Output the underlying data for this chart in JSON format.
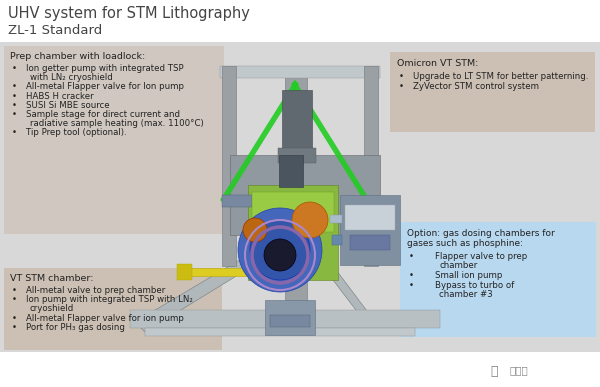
{
  "title": "UHV system for STM Lithography",
  "subtitle": "ZL-1 Standard",
  "white_bg": "#ffffff",
  "gray_bg": "#d8d8d8",
  "box_prep_color": "#d0c8c0",
  "box_omicron_color": "#ccc0b4",
  "box_vt_color": "#ccc0b4",
  "box_option_color": "#b8d8f0",
  "text_color": "#222222",
  "prep_title": "Prep chamber with loadlock:",
  "prep_bullets": [
    [
      "Ion getter pump with integrated TSP",
      "with LN₂ cryoshield"
    ],
    [
      "All-metal Flapper valve for Ion pump"
    ],
    [
      "HABS H cracker"
    ],
    [
      "SUSI Si MBE source"
    ],
    [
      "Sample stage for direct current and",
      "radiative sample heating (max. 1100°C)"
    ],
    [
      "Tip Prep tool (optional)."
    ]
  ],
  "omicron_title": "Omicron VT STM:",
  "omicron_bullets": [
    [
      "Upgrade to LT STM for better patterning."
    ],
    [
      "ZyVector STM control system"
    ]
  ],
  "vt_title": "VT STM chamber:",
  "vt_bullets": [
    [
      "All-metal valve to prep chamber"
    ],
    [
      "Ion pump with integrated TSP with LN₂",
      "cryoshield"
    ],
    [
      "All-metal Flapper valve for ion pump"
    ],
    [
      "Port for PH₃ gas dosing"
    ]
  ],
  "option_title1": "Option: gas dosing chambers for",
  "option_title2": "gases such as phosphine:",
  "option_bullets": [
    [
      "Flapper valve to prep",
      "chamber"
    ],
    [
      "Small ion pump"
    ],
    [
      "Bypass to turbo of",
      "chamber #3"
    ]
  ],
  "watermark": "芯智讯"
}
